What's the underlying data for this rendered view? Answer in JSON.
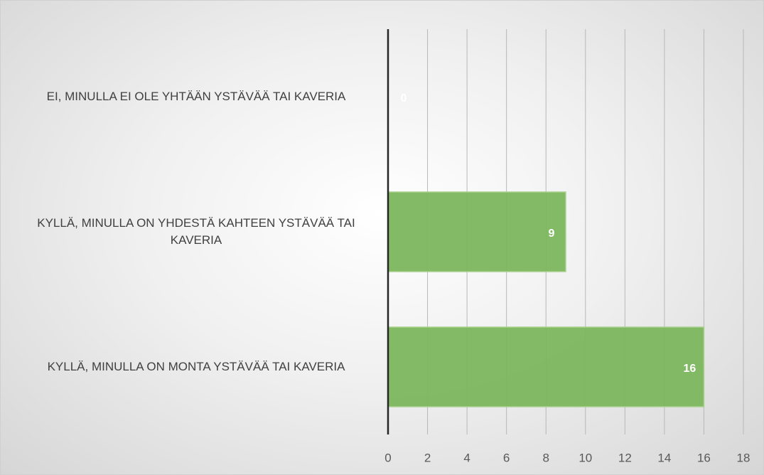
{
  "chart_data": {
    "type": "barh",
    "categories": [
      "EI, MINULLA EI OLE YHTÄÄN YSTÄVÄÄ TAI KAVERIA",
      "KYLLÄ, MINULLA ON YHDESTÄ KAHTEEN YSTÄVÄÄ TAI KAVERIA",
      "KYLLÄ, MINULLA ON MONTA YSTÄVÄÄ TAI KAVERIA"
    ],
    "values": [
      0,
      9,
      16
    ],
    "color": "#7cb65d",
    "xlim": [
      0,
      18
    ],
    "xticks": [
      0,
      2,
      4,
      6,
      8,
      10,
      12,
      14,
      16,
      18
    ],
    "grid": true
  }
}
